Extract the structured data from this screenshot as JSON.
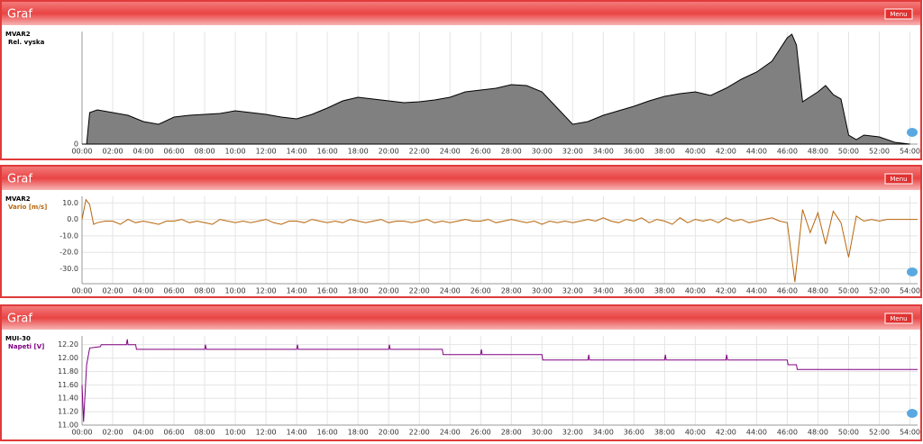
{
  "panels": [
    {
      "header": "Graf",
      "menu": "Menu"
    },
    {
      "header": "Graf",
      "menu": "Menu"
    },
    {
      "header": "Graf",
      "menu": "Menu"
    }
  ],
  "chart_data": [
    {
      "type": "area",
      "title": "MVAR2",
      "fill": "#808080",
      "x": [
        0,
        0.3,
        0.5,
        1,
        2,
        3,
        4,
        5,
        6,
        7,
        8,
        9,
        10,
        11,
        12,
        13,
        14,
        15,
        16,
        17,
        18,
        19,
        20,
        21,
        22,
        23,
        24,
        25,
        26,
        27,
        28,
        29,
        30,
        31,
        32,
        33,
        34,
        35,
        36,
        37,
        38,
        39,
        40,
        41,
        42,
        43,
        44,
        45,
        46,
        46.3,
        46.6,
        47,
        48,
        48.5,
        49,
        49.5,
        50,
        50.5,
        51,
        52,
        53,
        54
      ],
      "series": [
        {
          "name": "Rel. vyska",
          "color": "#000000",
          "values": [
            0,
            0,
            35,
            38,
            35,
            32,
            25,
            22,
            30,
            32,
            33,
            34,
            37,
            35,
            33,
            30,
            28,
            33,
            40,
            48,
            52,
            50,
            48,
            46,
            47,
            49,
            52,
            58,
            60,
            62,
            66,
            65,
            58,
            40,
            22,
            25,
            32,
            37,
            42,
            48,
            53,
            56,
            58,
            54,
            62,
            72,
            80,
            92,
            118,
            122,
            110,
            47,
            58,
            65,
            55,
            50,
            10,
            5,
            10,
            8,
            2,
            0
          ]
        }
      ],
      "xlim": [
        0,
        54.5
      ],
      "ylim": [
        0,
        125
      ],
      "yticks": [
        0
      ],
      "xticks": [
        {
          "value": 0,
          "label": "00:00"
        },
        {
          "value": 2,
          "label": "02:00"
        },
        {
          "value": 4,
          "label": "04:00"
        },
        {
          "value": 6,
          "label": "06:00"
        },
        {
          "value": 8,
          "label": "08:00"
        },
        {
          "value": 10,
          "label": "10:00"
        },
        {
          "value": 12,
          "label": "12:00"
        },
        {
          "value": 14,
          "label": "14:00"
        },
        {
          "value": 16,
          "label": "16:00"
        },
        {
          "value": 18,
          "label": "18:00"
        },
        {
          "value": 20,
          "label": "20:00"
        },
        {
          "value": 22,
          "label": "22:00"
        },
        {
          "value": 24,
          "label": "24:00"
        },
        {
          "value": 26,
          "label": "26:00"
        },
        {
          "value": 28,
          "label": "28:00"
        },
        {
          "value": 30,
          "label": "30:00"
        },
        {
          "value": 32,
          "label": "32:00"
        },
        {
          "value": 34,
          "label": "34:00"
        },
        {
          "value": 36,
          "label": "36:00"
        },
        {
          "value": 38,
          "label": "38:00"
        },
        {
          "value": 40,
          "label": "40:00"
        },
        {
          "value": 42,
          "label": "42:00"
        },
        {
          "value": 44,
          "label": "44:00"
        },
        {
          "value": 46,
          "label": "46:00"
        },
        {
          "value": 48,
          "label": "48:00"
        },
        {
          "value": 50,
          "label": "50:00"
        },
        {
          "value": 52,
          "label": "52:00"
        },
        {
          "value": 54,
          "label": "54:00"
        }
      ],
      "grid": true
    },
    {
      "type": "line",
      "title": "MVAR2",
      "x": [
        0,
        0.25,
        0.5,
        0.75,
        1,
        1.5,
        2,
        2.5,
        3,
        3.5,
        4,
        4.5,
        5,
        5.5,
        6,
        6.5,
        7,
        7.5,
        8,
        8.5,
        9,
        9.5,
        10,
        10.5,
        11,
        11.5,
        12,
        12.5,
        13,
        13.5,
        14,
        14.5,
        15,
        15.5,
        16,
        16.5,
        17,
        17.5,
        18,
        18.5,
        19,
        19.5,
        20,
        20.5,
        21,
        21.5,
        22,
        22.5,
        23,
        23.5,
        24,
        24.5,
        25,
        25.5,
        26,
        26.5,
        27,
        27.5,
        28,
        28.5,
        29,
        29.5,
        30,
        30.5,
        31,
        31.5,
        32,
        32.5,
        33,
        33.5,
        34,
        34.5,
        35,
        35.5,
        36,
        36.5,
        37,
        37.5,
        38,
        38.5,
        39,
        39.5,
        40,
        40.5,
        41,
        41.5,
        42,
        42.5,
        43,
        43.5,
        44,
        44.5,
        45,
        45.5,
        46,
        46.5,
        47,
        47.5,
        48,
        48.5,
        49,
        49.5,
        50,
        50.5,
        51,
        51.5,
        52,
        52.5,
        53,
        53.5,
        54,
        54.5
      ],
      "series": [
        {
          "name": "Vario [m/s]",
          "color": "#b8660b",
          "values": [
            0,
            12,
            9,
            -3,
            -2,
            -1,
            -1,
            -3,
            0,
            -2,
            -1,
            -2,
            -3,
            -1,
            -1,
            0,
            -2,
            -1,
            -2,
            -3,
            0,
            -1,
            -2,
            -1,
            -2,
            -1,
            0,
            -2,
            -3,
            -1,
            -1,
            -2,
            0,
            -1,
            -2,
            -1,
            -2,
            0,
            -1,
            -2,
            -1,
            0,
            -2,
            -1,
            -1,
            -2,
            -1,
            0,
            -2,
            -1,
            -2,
            -1,
            0,
            -1,
            -1,
            0,
            -2,
            -1,
            0,
            -1,
            -2,
            -1,
            -3,
            -1,
            -2,
            -1,
            -2,
            -1,
            0,
            -1,
            1,
            -1,
            -2,
            0,
            -1,
            1,
            -2,
            0,
            -1,
            -3,
            1,
            -2,
            0,
            -1,
            0,
            -2,
            1,
            -1,
            0,
            -2,
            -1,
            0,
            1,
            -1,
            -2,
            -38,
            6,
            -8,
            4,
            -15,
            5,
            -2,
            -23,
            2,
            -1,
            0,
            -1,
            0,
            0,
            0,
            0,
            0
          ]
        }
      ],
      "xlim": [
        0,
        54.5
      ],
      "ylim": [
        -39,
        14
      ],
      "yticks": [
        {
          "value": 10,
          "label": "10.0"
        },
        {
          "value": 0,
          "label": "0.0"
        },
        {
          "value": -10,
          "label": "-10.0"
        },
        {
          "value": -20,
          "label": "-20.0"
        },
        {
          "value": -30,
          "label": "-30.0"
        }
      ],
      "xticks": [
        {
          "value": 0,
          "label": "00:00"
        },
        {
          "value": 2,
          "label": "02:00"
        },
        {
          "value": 4,
          "label": "04:00"
        },
        {
          "value": 6,
          "label": "06:00"
        },
        {
          "value": 8,
          "label": "08:00"
        },
        {
          "value": 10,
          "label": "10:00"
        },
        {
          "value": 12,
          "label": "12:00"
        },
        {
          "value": 14,
          "label": "14:00"
        },
        {
          "value": 16,
          "label": "16:00"
        },
        {
          "value": 18,
          "label": "18:00"
        },
        {
          "value": 20,
          "label": "20:00"
        },
        {
          "value": 22,
          "label": "22:00"
        },
        {
          "value": 24,
          "label": "24:00"
        },
        {
          "value": 26,
          "label": "26:00"
        },
        {
          "value": 28,
          "label": "28:00"
        },
        {
          "value": 30,
          "label": "30:00"
        },
        {
          "value": 32,
          "label": "32:00"
        },
        {
          "value": 34,
          "label": "34:00"
        },
        {
          "value": 36,
          "label": "36:00"
        },
        {
          "value": 38,
          "label": "38:00"
        },
        {
          "value": 40,
          "label": "40:00"
        },
        {
          "value": 42,
          "label": "42:00"
        },
        {
          "value": 44,
          "label": "44:00"
        },
        {
          "value": 46,
          "label": "46:00"
        },
        {
          "value": 48,
          "label": "48:00"
        },
        {
          "value": 50,
          "label": "50:00"
        },
        {
          "value": 52,
          "label": "52:00"
        },
        {
          "value": 54,
          "label": "54:00"
        }
      ],
      "grid": true
    },
    {
      "type": "line",
      "title": "MUI-30",
      "x": [
        0,
        0.1,
        0.3,
        0.5,
        1.2,
        1.25,
        2.9,
        2.95,
        3.0,
        3.5,
        3.55,
        8,
        8.05,
        8.1,
        14,
        14.05,
        14.1,
        20,
        20.05,
        20.1,
        23.5,
        23.55,
        26,
        26.05,
        26.1,
        30,
        30.05,
        33,
        33.05,
        33.1,
        38,
        38.05,
        38.1,
        42,
        42.05,
        42.1,
        46,
        46.05,
        46.6,
        46.65,
        54.5
      ],
      "series": [
        {
          "name": "Napeti [V]",
          "color": "#800080",
          "values": [
            11.6,
            11.05,
            11.9,
            12.15,
            12.17,
            12.2,
            12.2,
            12.28,
            12.2,
            12.2,
            12.13,
            12.13,
            12.2,
            12.13,
            12.13,
            12.2,
            12.13,
            12.13,
            12.2,
            12.13,
            12.13,
            12.05,
            12.05,
            12.13,
            12.05,
            12.05,
            11.97,
            11.97,
            12.05,
            11.97,
            11.97,
            12.05,
            11.97,
            11.97,
            12.05,
            11.97,
            11.97,
            11.9,
            11.9,
            11.83,
            11.83
          ]
        }
      ],
      "xlim": [
        0,
        54.5
      ],
      "ylim": [
        11.0,
        12.33
      ],
      "yticks": [
        {
          "value": 12.2,
          "label": "12.20"
        },
        {
          "value": 12,
          "label": "12.00"
        },
        {
          "value": 11.8,
          "label": "11.80"
        },
        {
          "value": 11.6,
          "label": "11.60"
        },
        {
          "value": 11.4,
          "label": "11.40"
        },
        {
          "value": 11.2,
          "label": "11.20"
        },
        {
          "value": 11,
          "label": "11.00"
        }
      ],
      "xticks": [
        {
          "value": 0,
          "label": "00:00"
        },
        {
          "value": 2,
          "label": "02:00"
        },
        {
          "value": 4,
          "label": "04:00"
        },
        {
          "value": 6,
          "label": "06:00"
        },
        {
          "value": 8,
          "label": "08:00"
        },
        {
          "value": 10,
          "label": "10:00"
        },
        {
          "value": 12,
          "label": "12:00"
        },
        {
          "value": 14,
          "label": "14:00"
        },
        {
          "value": 16,
          "label": "16:00"
        },
        {
          "value": 18,
          "label": "18:00"
        },
        {
          "value": 20,
          "label": "20:00"
        },
        {
          "value": 22,
          "label": "22:00"
        },
        {
          "value": 24,
          "label": "24:00"
        },
        {
          "value": 26,
          "label": "26:00"
        },
        {
          "value": 28,
          "label": "28:00"
        },
        {
          "value": 30,
          "label": "30:00"
        },
        {
          "value": 32,
          "label": "32:00"
        },
        {
          "value": 34,
          "label": "34:00"
        },
        {
          "value": 36,
          "label": "36:00"
        },
        {
          "value": 38,
          "label": "38:00"
        },
        {
          "value": 40,
          "label": "40:00"
        },
        {
          "value": 42,
          "label": "42:00"
        },
        {
          "value": 44,
          "label": "44:00"
        },
        {
          "value": 46,
          "label": "46:00"
        },
        {
          "value": 48,
          "label": "48:00"
        },
        {
          "value": 50,
          "label": "50:00"
        },
        {
          "value": 52,
          "label": "52:00"
        },
        {
          "value": 54,
          "label": "54:00"
        }
      ],
      "grid": true
    }
  ]
}
